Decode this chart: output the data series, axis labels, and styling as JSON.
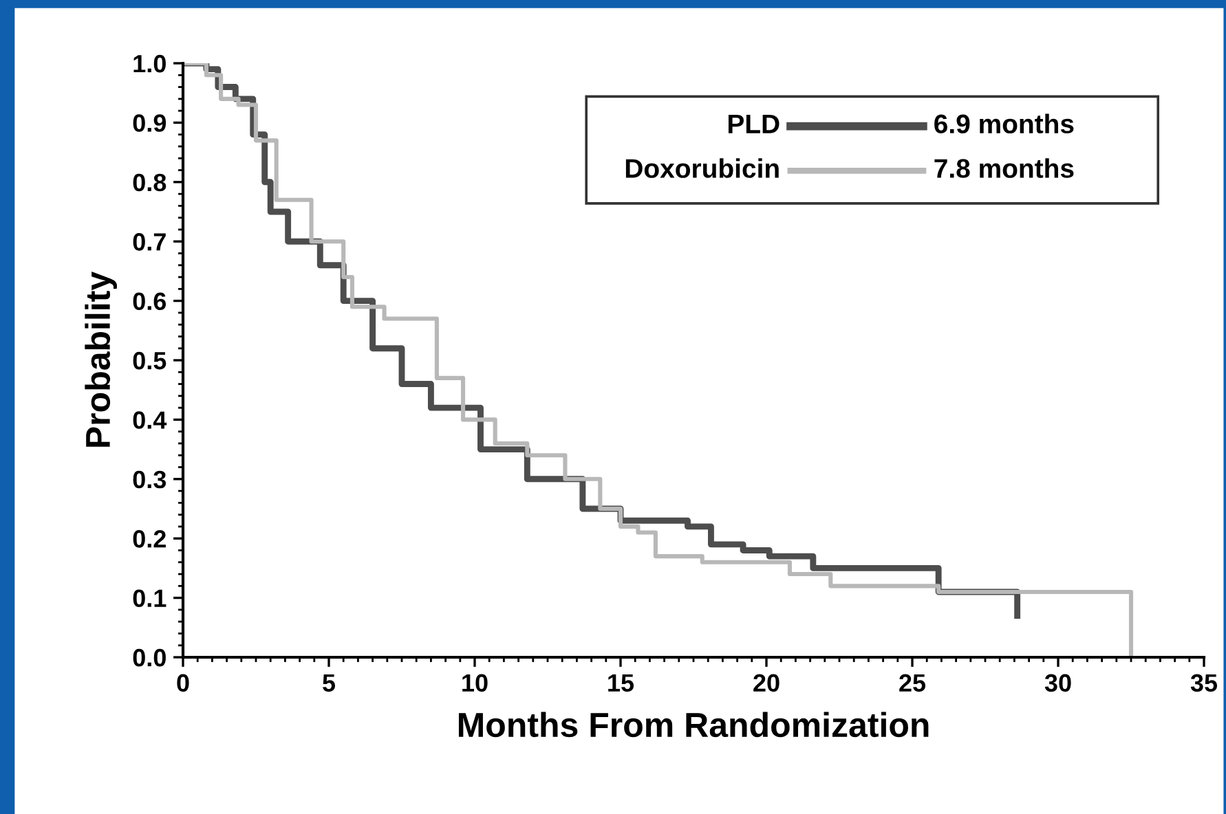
{
  "chart_data": {
    "type": "step",
    "xlabel": "Months From Randomization",
    "ylabel": "Probability",
    "xlim": [
      0,
      35
    ],
    "ylim": [
      0,
      1.0
    ],
    "xticks": [
      0,
      5,
      10,
      15,
      20,
      25,
      30,
      35
    ],
    "yticks": [
      {
        "value": 0,
        "label": "0.0"
      },
      0.1,
      0.2,
      0.3,
      0.4,
      0.5,
      0.6,
      0.7,
      0.8,
      0.9,
      {
        "value": 1,
        "label": "1.0"
      }
    ],
    "legend": "top right",
    "grid": false,
    "annotations": [
      "6.9 months",
      "7.8 months"
    ],
    "series": [
      {
        "name": "PLD",
        "color": "#4d4d4d",
        "x": [
          0,
          0.8,
          1.2,
          1.8,
          2.4,
          2.8,
          3.0,
          3.6,
          4.7,
          5.5,
          6.5,
          7.5,
          8.5,
          10.2,
          11.8,
          13.7,
          15.0,
          17.3,
          18.1,
          19.2,
          20.1,
          21.6,
          25.7,
          25.9,
          28.6,
          28.6
        ],
        "values": [
          1.0,
          0.99,
          0.96,
          0.94,
          0.88,
          0.8,
          0.75,
          0.7,
          0.66,
          0.6,
          0.52,
          0.46,
          0.42,
          0.35,
          0.3,
          0.25,
          0.23,
          0.22,
          0.19,
          0.18,
          0.17,
          0.15,
          0.15,
          0.11,
          0.11,
          0.07
        ]
      },
      {
        "name": "Doxorubicin",
        "color": "#b8b8b8",
        "x": [
          0,
          0.8,
          1.3,
          1.9,
          2.5,
          3.2,
          4.4,
          5.5,
          5.8,
          6.9,
          8.7,
          9.6,
          10.7,
          11.8,
          13.1,
          14.3,
          15.0,
          15.6,
          16.2,
          17.8,
          20.8,
          22.2,
          25.8,
          25.9,
          32.5,
          32.5
        ],
        "values": [
          1.0,
          0.98,
          0.94,
          0.93,
          0.87,
          0.77,
          0.7,
          0.64,
          0.59,
          0.57,
          0.47,
          0.4,
          0.36,
          0.34,
          0.3,
          0.25,
          0.22,
          0.21,
          0.17,
          0.16,
          0.14,
          0.12,
          0.12,
          0.11,
          0.11,
          0.0
        ]
      }
    ]
  }
}
